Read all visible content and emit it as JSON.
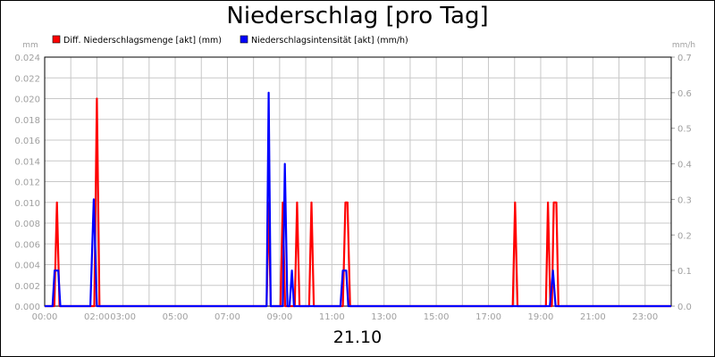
{
  "chart_data": {
    "type": "line",
    "title": "Niederschlag [pro Tag]",
    "xlabel": "21.10",
    "left_axis": {
      "unit": "mm",
      "ylim": [
        0,
        0.024
      ],
      "ticks": [
        "0.000",
        "0.002",
        "0.004",
        "0.006",
        "0.008",
        "0.010",
        "0.012",
        "0.014",
        "0.016",
        "0.018",
        "0.020",
        "0.022",
        "0.024"
      ]
    },
    "right_axis": {
      "unit": "mm/h",
      "ylim": [
        0,
        0.7
      ],
      "ticks": [
        "0.0",
        "0.1",
        "0.2",
        "0.3",
        "0.4",
        "0.5",
        "0.6",
        "0.7"
      ]
    },
    "x_range_hours": [
      0,
      24
    ],
    "x_ticks": [
      {
        "h": 0,
        "label": "00:00"
      },
      {
        "h": 2,
        "label": "02:00"
      },
      {
        "h": 3,
        "label": "03:00"
      },
      {
        "h": 5,
        "label": "05:00"
      },
      {
        "h": 7,
        "label": "07:00"
      },
      {
        "h": 9,
        "label": "09:00"
      },
      {
        "h": 11,
        "label": "11:00"
      },
      {
        "h": 13,
        "label": "13:00"
      },
      {
        "h": 15,
        "label": "15:00"
      },
      {
        "h": 17,
        "label": "17:00"
      },
      {
        "h": 19,
        "label": "19:00"
      },
      {
        "h": 21,
        "label": "21:00"
      },
      {
        "h": 23,
        "label": "23:00"
      }
    ],
    "grid": true,
    "legend_placement": "top-left",
    "series": [
      {
        "name": "Diff. Niederschlagsmenge [akt] (mm)",
        "color": "#ff0000",
        "axis": "left",
        "points": [
          [
            0,
            0
          ],
          [
            0.37,
            0
          ],
          [
            0.47,
            0.01
          ],
          [
            0.57,
            0
          ],
          [
            1.9,
            0
          ],
          [
            2.0,
            0.02
          ],
          [
            2.1,
            0
          ],
          [
            8.5,
            0
          ],
          [
            8.58,
            0.01
          ],
          [
            8.66,
            0
          ],
          [
            9.03,
            0
          ],
          [
            9.12,
            0.01
          ],
          [
            9.21,
            0
          ],
          [
            9.58,
            0
          ],
          [
            9.67,
            0.01
          ],
          [
            9.76,
            0
          ],
          [
            10.13,
            0
          ],
          [
            10.22,
            0.01
          ],
          [
            10.31,
            0
          ],
          [
            11.42,
            0
          ],
          [
            11.52,
            0.01
          ],
          [
            11.6,
            0.01
          ],
          [
            11.7,
            0
          ],
          [
            17.93,
            0
          ],
          [
            18.02,
            0.01
          ],
          [
            18.11,
            0
          ],
          [
            19.2,
            0
          ],
          [
            19.28,
            0.01
          ],
          [
            19.37,
            0
          ],
          [
            19.43,
            0
          ],
          [
            19.5,
            0.01
          ],
          [
            19.6,
            0.01
          ],
          [
            19.68,
            0
          ],
          [
            24,
            0
          ]
        ]
      },
      {
        "name": "Niederschlagsintensität [akt] (mm/h)",
        "color": "#0000ff",
        "axis": "right",
        "points": [
          [
            0,
            0
          ],
          [
            0.3,
            0
          ],
          [
            0.38,
            0.1
          ],
          [
            0.52,
            0.1
          ],
          [
            0.6,
            0
          ],
          [
            1.75,
            0
          ],
          [
            1.88,
            0.3
          ],
          [
            2.0,
            0
          ],
          [
            8.5,
            0
          ],
          [
            8.58,
            0.6
          ],
          [
            8.66,
            0
          ],
          [
            9.12,
            0
          ],
          [
            9.2,
            0.4
          ],
          [
            9.3,
            0
          ],
          [
            9.38,
            0
          ],
          [
            9.47,
            0.1
          ],
          [
            9.55,
            0
          ],
          [
            11.33,
            0
          ],
          [
            11.42,
            0.1
          ],
          [
            11.55,
            0.1
          ],
          [
            11.63,
            0
          ],
          [
            19.35,
            0
          ],
          [
            19.47,
            0.1
          ],
          [
            19.57,
            0
          ],
          [
            24,
            0
          ]
        ]
      }
    ]
  }
}
